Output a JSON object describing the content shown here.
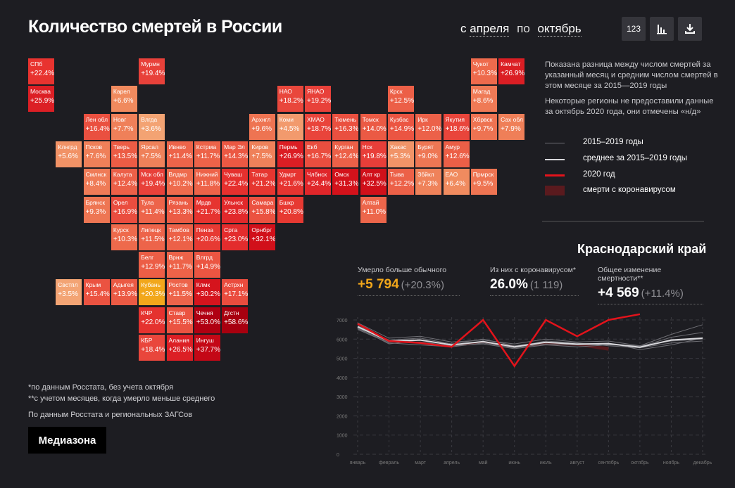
{
  "header": {
    "title": "Количество смертей в России",
    "period_from_prefix": "с",
    "period_from": "апреля",
    "period_to_prefix": "по",
    "period_to": "октябрь",
    "btn_numbers_label": "123"
  },
  "notes": {
    "main": "Показана разница между числом смертей за указанный месяц и средним числом смертей в этом месяце за 2015—2019 годы",
    "missing": "Некоторые регионы не предоставили данные за октябрь 2020 года, они отмечены «н/д»"
  },
  "legend": [
    {
      "label": "2015–2019 годы",
      "color": "#6e6e74"
    },
    {
      "label": "среднее за 2015–2019 годы",
      "color": "#d8d8dc"
    },
    {
      "label": "2020 год",
      "color": "#e3131b"
    },
    {
      "label": "смерти с коронавирусом",
      "color": "#5a1a1e"
    }
  ],
  "map_tiles": [
    {
      "name": "СПб",
      "value": "+22.4%",
      "color": "#e8332f"
    },
    {
      "name": "Мурмн",
      "value": "+19.4%",
      "color": "#e8413a"
    },
    {
      "name": "Чукот",
      "value": "+10.3%",
      "color": "#ee6a4c"
    },
    {
      "name": "Камчат",
      "value": "+26.9%",
      "color": "#db1e24"
    },
    {
      "name": "Москва",
      "value": "+25.9%",
      "color": "#dc1f25"
    },
    {
      "name": "Карел",
      "value": "+6.6%",
      "color": "#f08a5e"
    },
    {
      "name": "НАО",
      "value": "+18.2%",
      "color": "#e9473c"
    },
    {
      "name": "ЯНАО",
      "value": "+19.2%",
      "color": "#e8413a"
    },
    {
      "name": "Крск",
      "value": "+12.5%",
      "color": "#ec5f47"
    },
    {
      "name": "Магад",
      "value": "+8.6%",
      "color": "#ef7a56"
    },
    {
      "name": "Лен обл",
      "value": "+16.4%",
      "color": "#ea5040"
    },
    {
      "name": "Новг",
      "value": "+7.7%",
      "color": "#ef8059"
    },
    {
      "name": "Влгда",
      "value": "+3.6%",
      "color": "#f3a373"
    },
    {
      "name": "Архнгл",
      "value": "+9.6%",
      "color": "#ee7452"
    },
    {
      "name": "Коми",
      "value": "+4.5%",
      "color": "#f29a6d"
    },
    {
      "name": "ХМАО",
      "value": "+18.7%",
      "color": "#e9443b"
    },
    {
      "name": "Тюмень",
      "value": "+16.3%",
      "color": "#ea5040"
    },
    {
      "name": "Томск",
      "value": "+14.0%",
      "color": "#eb5a44"
    },
    {
      "name": "Кузбас",
      "value": "+14.9%",
      "color": "#eb5542"
    },
    {
      "name": "Ирк",
      "value": "+12.0%",
      "color": "#ec6149"
    },
    {
      "name": "Якутия",
      "value": "+18.6%",
      "color": "#e9453b"
    },
    {
      "name": "Хбрвск",
      "value": "+9.7%",
      "color": "#ee7352"
    },
    {
      "name": "Сах обл",
      "value": "+7.9%",
      "color": "#ef7f58"
    },
    {
      "name": "Клнгрд",
      "value": "+5.6%",
      "color": "#f19266"
    },
    {
      "name": "Псков",
      "value": "+7.6%",
      "color": "#ef8059"
    },
    {
      "name": "Тверь",
      "value": "+13.5%",
      "color": "#ec5c45"
    },
    {
      "name": "Ярсал",
      "value": "+7.5%",
      "color": "#ef815a"
    },
    {
      "name": "Ивнво",
      "value": "+11.4%",
      "color": "#ed644a"
    },
    {
      "name": "Кстрма",
      "value": "+11.7%",
      "color": "#ed6349"
    },
    {
      "name": "Мар Эл",
      "value": "+14.3%",
      "color": "#eb5843"
    },
    {
      "name": "Киров",
      "value": "+7.5%",
      "color": "#ef815a"
    },
    {
      "name": "Пермь",
      "value": "+26.9%",
      "color": "#db1e24"
    },
    {
      "name": "Екб",
      "value": "+16.7%",
      "color": "#ea4e3f"
    },
    {
      "name": "Курган",
      "value": "+12.4%",
      "color": "#ec6048"
    },
    {
      "name": "Нск",
      "value": "+19.8%",
      "color": "#e83e39"
    },
    {
      "name": "Хакас",
      "value": "+5.3%",
      "color": "#f19468"
    },
    {
      "name": "Бурят",
      "value": "+9.0%",
      "color": "#ee7754"
    },
    {
      "name": "Амур",
      "value": "+12.6%",
      "color": "#ec5f47"
    },
    {
      "name": "Смлнск",
      "value": "+8.4%",
      "color": "#ef7b57"
    },
    {
      "name": "Калуга",
      "value": "+12.4%",
      "color": "#ec6048"
    },
    {
      "name": "Мск обл",
      "value": "+19.4%",
      "color": "#e8413a"
    },
    {
      "name": "Влдмр",
      "value": "+10.2%",
      "color": "#ee6b4d"
    },
    {
      "name": "Нижний",
      "value": "+11.8%",
      "color": "#ed6349"
    },
    {
      "name": "Чуваш",
      "value": "+22.4%",
      "color": "#e5302e"
    },
    {
      "name": "Татар",
      "value": "+21.2%",
      "color": "#e63630"
    },
    {
      "name": "Удмрт",
      "value": "+21.6%",
      "color": "#e63430"
    },
    {
      "name": "Члбнск",
      "value": "+24.4%",
      "color": "#e0262a"
    },
    {
      "name": "Омск",
      "value": "+31.3%",
      "color": "#d3121b"
    },
    {
      "name": "Алт кр",
      "value": "+32.5%",
      "color": "#d0101a"
    },
    {
      "name": "Тыва",
      "value": "+12.2%",
      "color": "#ec6148"
    },
    {
      "name": "Збйкл",
      "value": "+7.3%",
      "color": "#ef825a"
    },
    {
      "name": "ЕАО",
      "value": "+6.4%",
      "color": "#f08b5f"
    },
    {
      "name": "Прмрск",
      "value": "+9.5%",
      "color": "#ee7452"
    },
    {
      "name": "Брянск",
      "value": "+9.3%",
      "color": "#ee7653"
    },
    {
      "name": "Орел",
      "value": "+16.9%",
      "color": "#ea4d3f"
    },
    {
      "name": "Тула",
      "value": "+11.4%",
      "color": "#ed644a"
    },
    {
      "name": "Рязань",
      "value": "+13.3%",
      "color": "#ec5c45"
    },
    {
      "name": "Мрдв",
      "value": "+21.7%",
      "color": "#e63430"
    },
    {
      "name": "Ульнск",
      "value": "+23.8%",
      "color": "#e2292b"
    },
    {
      "name": "Самара",
      "value": "+15.8%",
      "color": "#eb5241"
    },
    {
      "name": "Бшкр",
      "value": "+20.8%",
      "color": "#e73932"
    },
    {
      "name": "Алтай",
      "value": "+11.0%",
      "color": "#ed664b"
    },
    {
      "name": "Курск",
      "value": "+10.3%",
      "color": "#ee6a4c"
    },
    {
      "name": "Липецк",
      "value": "+11.5%",
      "color": "#ed644a"
    },
    {
      "name": "Тамбов",
      "value": "+12.1%",
      "color": "#ec6148"
    },
    {
      "name": "Пенза",
      "value": "+20.6%",
      "color": "#e73a33"
    },
    {
      "name": "Срта",
      "value": "+23.0%",
      "color": "#e32c2d"
    },
    {
      "name": "Орнбрг",
      "value": "+32.1%",
      "color": "#d1101a"
    },
    {
      "name": "Белг",
      "value": "+12.9%",
      "color": "#ec5e46"
    },
    {
      "name": "Врнж",
      "value": "+11.7%",
      "color": "#ed6349"
    },
    {
      "name": "Влгрд",
      "value": "+14.9%",
      "color": "#eb5542"
    },
    {
      "name": "Свстпл",
      "value": "+3.5%",
      "color": "#f3a474"
    },
    {
      "name": "Крым",
      "value": "+15.4%",
      "color": "#eb5341"
    },
    {
      "name": "Адыгея",
      "value": "+13.9%",
      "color": "#eb5a44"
    },
    {
      "name": "Кубань",
      "value": "+20.3%",
      "color": "#f2a71b"
    },
    {
      "name": "Ростов",
      "value": "+11.5%",
      "color": "#ed644a"
    },
    {
      "name": "Клмк",
      "value": "+30.2%",
      "color": "#d5141d"
    },
    {
      "name": "Астрхн",
      "value": "+17.1%",
      "color": "#ea4c3e"
    },
    {
      "name": "КЧР",
      "value": "+22.0%",
      "color": "#e5322f"
    },
    {
      "name": "Ставр",
      "value": "+15.5%",
      "color": "#eb5341"
    },
    {
      "name": "Чечня",
      "value": "+53.0%",
      "color": "#b00012"
    },
    {
      "name": "Дгстн",
      "value": "+58.6%",
      "color": "#a8000f"
    },
    {
      "name": "КБР",
      "value": "+18.4%",
      "color": "#e9463c"
    },
    {
      "name": "Алания",
      "value": "+26.5%",
      "color": "#dc1f25"
    },
    {
      "name": "Ингуш",
      "value": "+37.7%",
      "color": "#c40816"
    }
  ],
  "region": {
    "title": "Краснодарский край",
    "stat1_label": "Умерло больше обычного",
    "stat1_value": "+5 794",
    "stat1_sub": "(+20.3%)",
    "stat1_color": "#f2a71b",
    "stat2_label": "Из них с коронавирусом*",
    "stat2_value": "26.0%",
    "stat2_sub": "(1 119)",
    "stat3_label": "Общее изменение смертности**",
    "stat3_value": "+4 569",
    "stat3_sub": "(+11.4%)"
  },
  "chart_data": {
    "type": "line",
    "categories": [
      "январь",
      "февраль",
      "март",
      "апрель",
      "май",
      "июнь",
      "июль",
      "август",
      "сентябрь",
      "октябрь",
      "ноябрь",
      "декабрь"
    ],
    "ylim": [
      0,
      7000
    ],
    "yticks": [
      0,
      1000,
      2000,
      3000,
      4000,
      5000,
      6000,
      7000
    ],
    "ytick_labels": [
      "0",
      "1000",
      "2000",
      "3000",
      "4000",
      "5000",
      "6000",
      "7000"
    ],
    "grid": true,
    "series_past": [
      [
        6700,
        5950,
        6050,
        5750,
        6000,
        5650,
        5850,
        5750,
        5800,
        5450,
        5700,
        6050
      ],
      [
        6550,
        5850,
        5850,
        5650,
        5750,
        5500,
        5700,
        5600,
        5700,
        5650,
        5900,
        6000
      ],
      [
        6850,
        6050,
        6150,
        5850,
        5950,
        5750,
        6000,
        5850,
        5900,
        5650,
        6250,
        6750
      ],
      [
        6600,
        5750,
        5950,
        5700,
        5850,
        5600,
        5900,
        5800,
        5650,
        5550,
        5800,
        5900
      ],
      [
        6500,
        5800,
        5700,
        5600,
        5800,
        5550,
        5750,
        5700,
        5750,
        5600,
        6100,
        6350
      ]
    ],
    "series_average": [
      6650,
      5900,
      5950,
      5700,
      5870,
      5600,
      5840,
      5740,
      5760,
      5580,
      5950,
      6050
    ],
    "series_2020": [
      6800,
      5900,
      5800,
      5600,
      7000,
      4600,
      7000,
      6150,
      7000,
      7300
    ],
    "covid_band": {
      "from_index": 3,
      "to_index": 8,
      "upper": [
        5700,
        5900,
        5650,
        5850,
        5760,
        5600
      ],
      "lower": [
        5600,
        5800,
        5550,
        5700,
        5650,
        5400
      ]
    }
  },
  "footnotes": {
    "note1": "*по данным Росстата, без учета октября",
    "note2": "**с учетом месяцев, когда умерло меньше среднего",
    "source": "По данным Росстата и региональных ЗАГСов"
  },
  "brand": {
    "label": "Медиазона"
  }
}
